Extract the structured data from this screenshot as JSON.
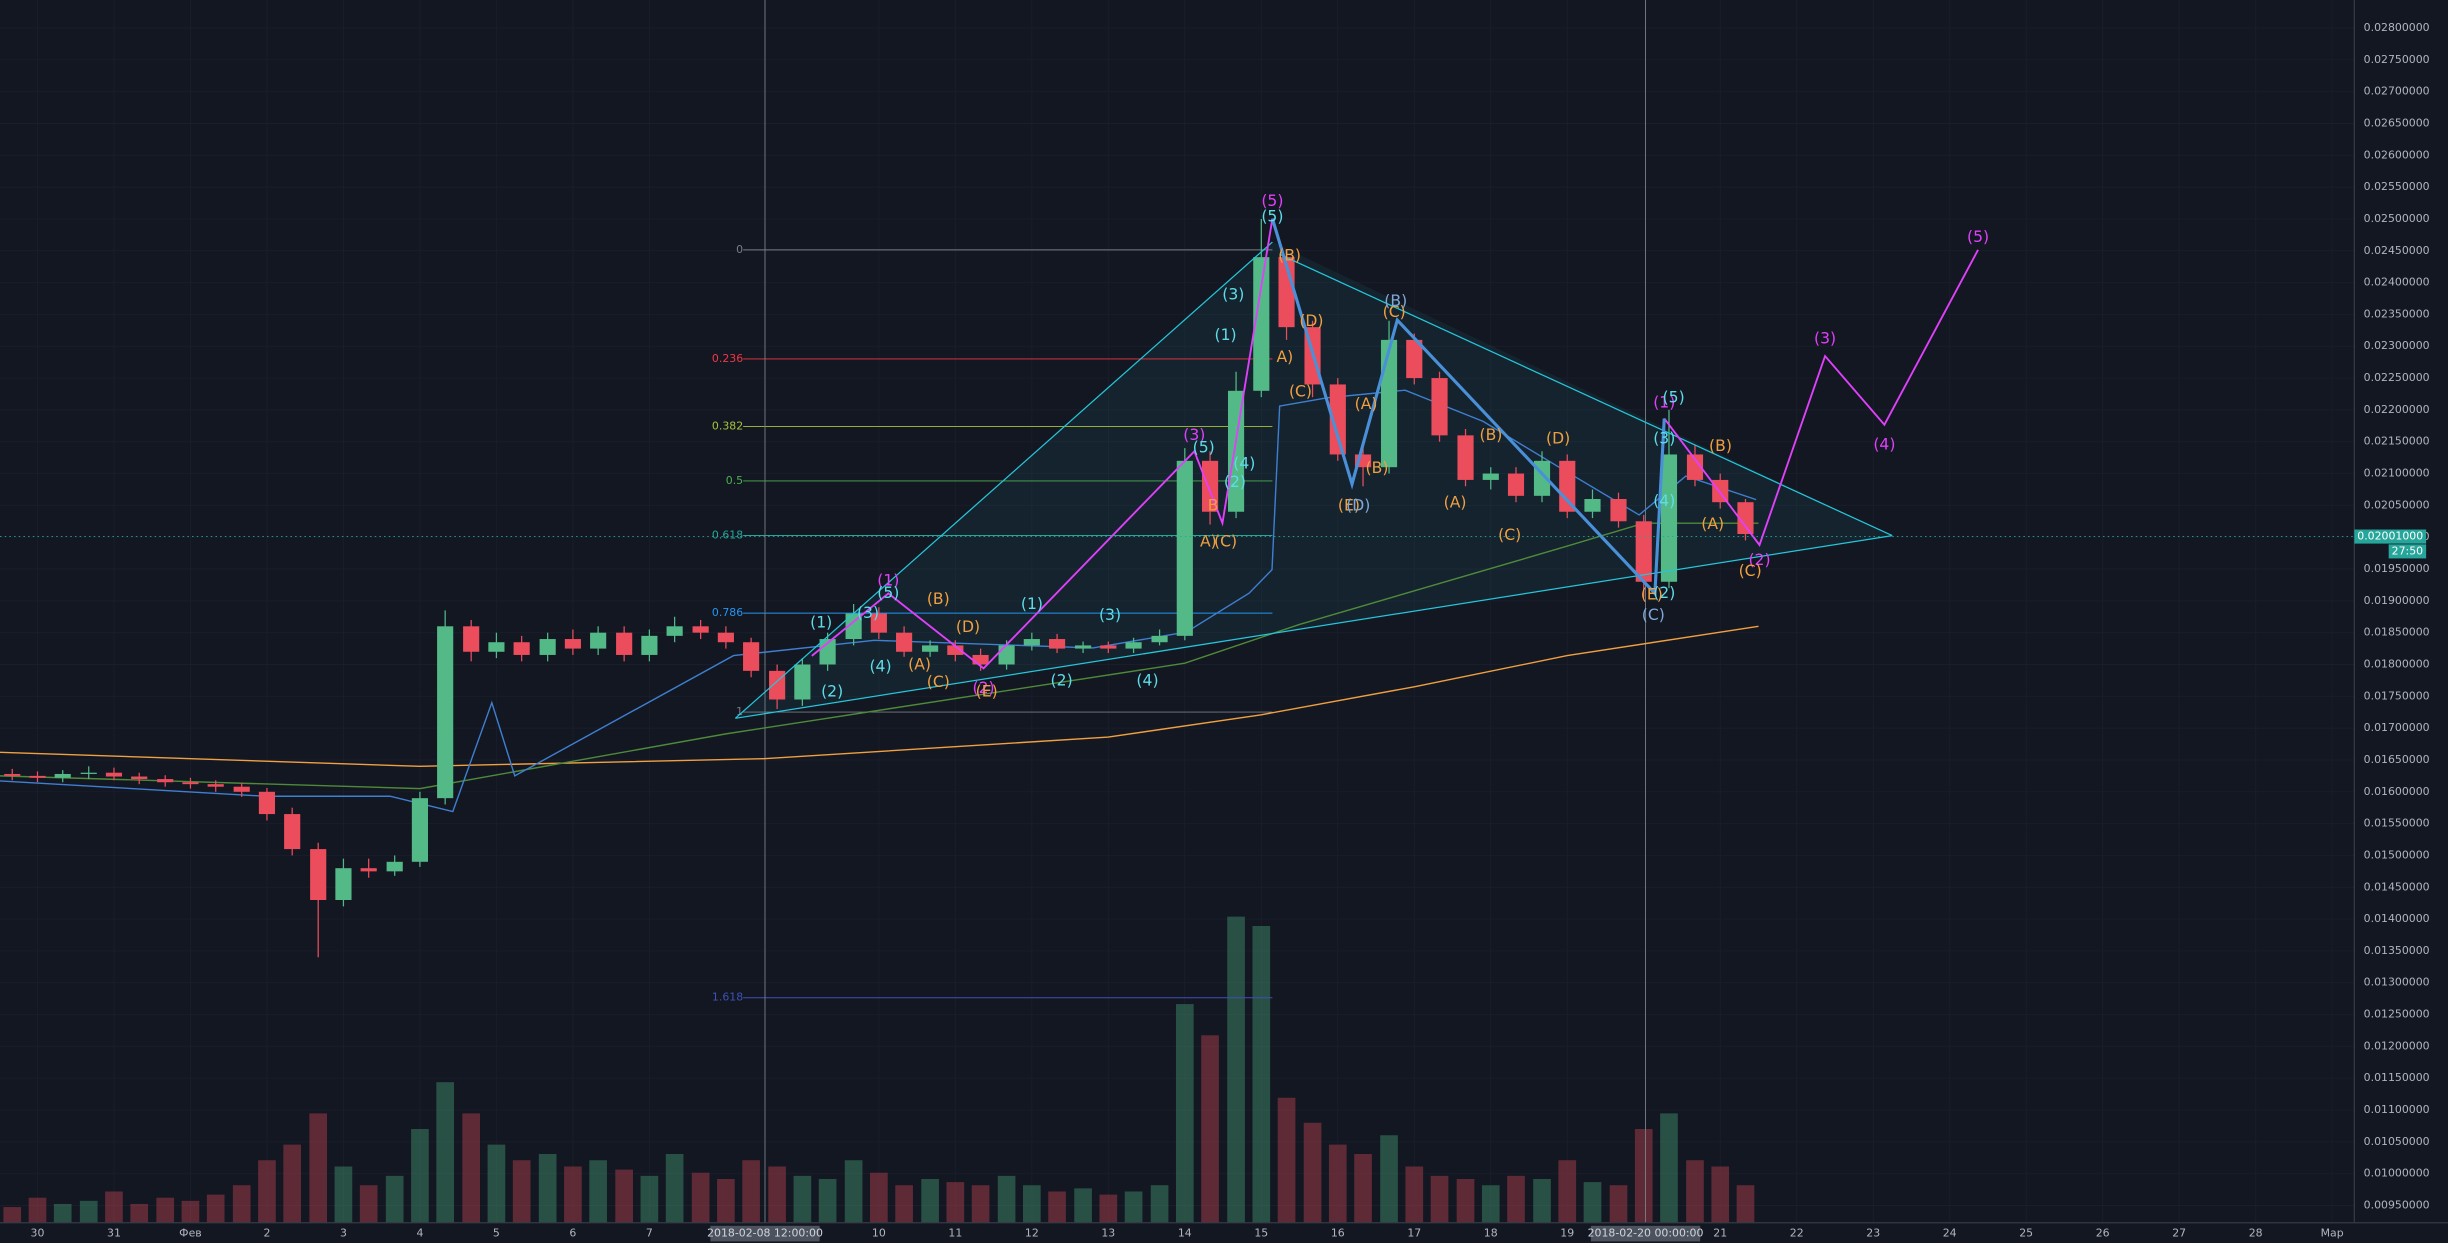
{
  "chart_data": {
    "type": "candlestick",
    "x": [
      -1.33,
      -1,
      -0.67,
      -0.33,
      0,
      0.33,
      0.67,
      1,
      1.33,
      1.67,
      2,
      2.33,
      2.67,
      3,
      3.33,
      3.67,
      4,
      4.33,
      4.67,
      5,
      5.33,
      5.67,
      6,
      6.33,
      6.67,
      7,
      7.33,
      7.67,
      8,
      8.33,
      8.67,
      9,
      9.33,
      9.67,
      10,
      10.33,
      10.67,
      11,
      11.33,
      11.67,
      12,
      12.33,
      12.67,
      13,
      13.33,
      13.67,
      14,
      14.33,
      14.67,
      15,
      15.33,
      15.67,
      16,
      16.33,
      16.67,
      17,
      17.33,
      17.67,
      18,
      18.33,
      18.67,
      19,
      19.33,
      19.67,
      20,
      20.33,
      20.67,
      21,
      21.33
    ],
    "open": [
      0.01628,
      0.01625,
      0.01622,
      0.01628,
      0.0163,
      0.01624,
      0.0162,
      0.01615,
      0.01612,
      0.01608,
      0.016,
      0.01565,
      0.0151,
      0.0143,
      0.0148,
      0.01475,
      0.0149,
      0.0159,
      0.0186,
      0.0182,
      0.01835,
      0.01815,
      0.0184,
      0.01825,
      0.0185,
      0.01815,
      0.01845,
      0.0186,
      0.0185,
      0.01835,
      0.0179,
      0.01745,
      0.018,
      0.0184,
      0.0188,
      0.0185,
      0.0182,
      0.0183,
      0.01815,
      0.018,
      0.0183,
      0.0184,
      0.01825,
      0.0183,
      0.01825,
      0.01835,
      0.01845,
      0.0212,
      0.0204,
      0.0223,
      0.0244,
      0.0233,
      0.0224,
      0.0213,
      0.0211,
      0.0231,
      0.0225,
      0.0216,
      0.0209,
      0.021,
      0.02065,
      0.0212,
      0.0204,
      0.0206,
      0.02025,
      0.0193,
      0.0213,
      0.0209,
      0.02055
    ],
    "high": [
      0.01636,
      0.01632,
      0.01634,
      0.0164,
      0.01638,
      0.0163,
      0.01626,
      0.01622,
      0.01618,
      0.01614,
      0.01606,
      0.01575,
      0.0152,
      0.01495,
      0.01495,
      0.015,
      0.016,
      0.01885,
      0.0187,
      0.0185,
      0.01845,
      0.0185,
      0.01855,
      0.0186,
      0.0186,
      0.01855,
      0.01875,
      0.0187,
      0.0186,
      0.01842,
      0.018,
      0.0181,
      0.0185,
      0.01895,
      0.0189,
      0.0186,
      0.01838,
      0.01838,
      0.01825,
      0.01838,
      0.0185,
      0.01848,
      0.01836,
      0.01836,
      0.01842,
      0.01855,
      0.0214,
      0.02135,
      0.0226,
      0.025,
      0.0245,
      0.0234,
      0.0225,
      0.0215,
      0.0234,
      0.0232,
      0.0226,
      0.0217,
      0.0211,
      0.0211,
      0.02135,
      0.0213,
      0.02075,
      0.0207,
      0.02035,
      0.022,
      0.02145,
      0.021,
      0.0206
    ],
    "low": [
      0.01618,
      0.01615,
      0.01615,
      0.0162,
      0.01618,
      0.01612,
      0.01608,
      0.01605,
      0.016,
      0.01592,
      0.01555,
      0.015,
      0.0134,
      0.0142,
      0.01465,
      0.01468,
      0.01482,
      0.0158,
      0.01805,
      0.0181,
      0.01805,
      0.01805,
      0.01815,
      0.01815,
      0.01805,
      0.01805,
      0.01835,
      0.0184,
      0.01825,
      0.0178,
      0.0173,
      0.01735,
      0.0179,
      0.0183,
      0.0184,
      0.01812,
      0.01812,
      0.01805,
      0.0179,
      0.01792,
      0.01822,
      0.01818,
      0.01818,
      0.01818,
      0.01818,
      0.0183,
      0.01838,
      0.0202,
      0.0203,
      0.0222,
      0.0231,
      0.0222,
      0.0212,
      0.0208,
      0.021,
      0.0224,
      0.0215,
      0.0208,
      0.02075,
      0.02055,
      0.02055,
      0.0203,
      0.0203,
      0.02015,
      0.01905,
      0.0192,
      0.0208,
      0.02045,
      0.01995
    ],
    "close": [
      0.01625,
      0.01622,
      0.01628,
      0.0163,
      0.01624,
      0.0162,
      0.01615,
      0.01612,
      0.01608,
      0.016,
      0.01565,
      0.0151,
      0.0143,
      0.0148,
      0.01475,
      0.0149,
      0.0159,
      0.0186,
      0.0182,
      0.01835,
      0.01815,
      0.0184,
      0.01825,
      0.0185,
      0.01815,
      0.01845,
      0.0186,
      0.0185,
      0.01835,
      0.0179,
      0.01745,
      0.018,
      0.0184,
      0.0188,
      0.0185,
      0.0182,
      0.0183,
      0.01815,
      0.018,
      0.0183,
      0.0184,
      0.01825,
      0.0183,
      0.01825,
      0.01835,
      0.01845,
      0.0212,
      0.0204,
      0.0223,
      0.0244,
      0.0233,
      0.0224,
      0.0213,
      0.0211,
      0.0231,
      0.0225,
      0.0216,
      0.0209,
      0.021,
      0.02065,
      0.0212,
      0.0204,
      0.0206,
      0.02025,
      0.0193,
      0.0213,
      0.0209,
      0.02055,
      0.02005
    ],
    "volume": [
      5,
      8,
      6,
      7,
      10,
      6,
      8,
      7,
      9,
      12,
      20,
      25,
      35,
      18,
      12,
      15,
      30,
      45,
      35,
      25,
      20,
      22,
      18,
      20,
      17,
      15,
      22,
      16,
      14,
      20,
      18,
      15,
      14,
      20,
      16,
      12,
      14,
      13,
      12,
      15,
      12,
      10,
      11,
      9,
      10,
      12,
      70,
      60,
      98,
      95,
      40,
      32,
      25,
      22,
      28,
      18,
      15,
      14,
      12,
      15,
      14,
      20,
      13,
      12,
      30,
      35,
      20,
      18,
      12
    ],
    "volume_lim": [
      0,
      100
    ],
    "up_color": "#53b987",
    "down_color": "#eb4d5c",
    "xlim": [
      -1.49,
      29.29
    ],
    "xticks": [
      {
        "value": -1,
        "label": "30"
      },
      {
        "value": 0,
        "label": "31"
      },
      {
        "value": 1,
        "label": "Фев"
      },
      2,
      3,
      4,
      5,
      6,
      7,
      10,
      11,
      12,
      13,
      14,
      15,
      16,
      17,
      18,
      19,
      21,
      22,
      23,
      24,
      25,
      26,
      27,
      28,
      {
        "value": 29,
        "label": "Мар"
      }
    ],
    "ylim": [
      0.00923,
      0.02844
    ],
    "yticks": [
      {
        "value": 0.0095,
        "label": "0.00950000"
      },
      {
        "value": 0.01,
        "label": "0.01000000"
      },
      {
        "value": 0.0105,
        "label": "0.01050000"
      },
      {
        "value": 0.011,
        "label": "0.01100000"
      },
      {
        "value": 0.0115,
        "label": "0.01150000"
      },
      {
        "value": 0.012,
        "label": "0.01200000"
      },
      {
        "value": 0.0125,
        "label": "0.01250000"
      },
      {
        "value": 0.013,
        "label": "0.01300000"
      },
      {
        "value": 0.0135,
        "label": "0.01350000"
      },
      {
        "value": 0.014,
        "label": "0.01400000"
      },
      {
        "value": 0.0145,
        "label": "0.01450000"
      },
      {
        "value": 0.015,
        "label": "0.01500000"
      },
      {
        "value": 0.0155,
        "label": "0.01550000"
      },
      {
        "value": 0.016,
        "label": "0.01600000"
      },
      {
        "value": 0.0165,
        "label": "0.01650000"
      },
      {
        "value": 0.017,
        "label": "0.01700000"
      },
      {
        "value": 0.0175,
        "label": "0.01750000"
      },
      {
        "value": 0.018,
        "label": "0.01800000"
      },
      {
        "value": 0.0185,
        "label": "0.01850000"
      },
      {
        "value": 0.019,
        "label": "0.01900000"
      },
      {
        "value": 0.0195,
        "label": "0.01950000"
      },
      {
        "value": 0.02,
        "label": "0.02000000"
      },
      {
        "value": 0.0205,
        "label": "0.02050000"
      },
      {
        "value": 0.021,
        "label": "0.02100000"
      },
      {
        "value": 0.0215,
        "label": "0.02150000"
      },
      {
        "value": 0.022,
        "label": "0.02200000"
      },
      {
        "value": 0.0225,
        "label": "0.02250000"
      },
      {
        "value": 0.023,
        "label": "0.02300000"
      },
      {
        "value": 0.0235,
        "label": "0.02350000"
      },
      {
        "value": 0.024,
        "label": "0.02400000"
      },
      {
        "value": 0.0245,
        "label": "0.02450000"
      },
      {
        "value": 0.025,
        "label": "0.02500000"
      },
      {
        "value": 0.0255,
        "label": "0.02550000"
      },
      {
        "value": 0.026,
        "label": "0.02600000"
      },
      {
        "value": 0.0265,
        "label": "0.02650000"
      },
      {
        "value": 0.027,
        "label": "0.02700000"
      },
      {
        "value": 0.0275,
        "label": "0.02750000"
      },
      {
        "value": 0.028,
        "label": "0.02800000"
      }
    ],
    "grid": true,
    "overlays": [
      {
        "color": "#f0a040",
        "x": [
          -1.49,
          4,
          8.5,
          13,
          15,
          17,
          19,
          21.5
        ],
        "values": [
          0.01662,
          0.0164,
          0.01652,
          0.01686,
          0.01721,
          0.01765,
          0.01814,
          0.0186
        ]
      },
      {
        "color": "#4e8a3a",
        "x": [
          -1.49,
          4,
          8,
          14,
          15.5,
          19,
          20,
          21.5
        ],
        "values": [
          0.01625,
          0.01605,
          0.01691,
          0.01802,
          0.01863,
          0.01986,
          0.02022,
          0.02022
        ]
      },
      {
        "color": "#3f7fd0",
        "x": [
          -1.49,
          1.98,
          3.61,
          4.43,
          4.94,
          5.24,
          8.1,
          9.94,
          12.8,
          14.02,
          14.84,
          15.14,
          15.24,
          15.86,
          16.88,
          17.9,
          18.92,
          19.94,
          20.55,
          21.47
        ],
        "values": [
          0.01617,
          0.01593,
          0.01593,
          0.01569,
          0.0174,
          0.01625,
          0.01814,
          0.01838,
          0.01826,
          0.01851,
          0.01912,
          0.01949,
          0.02206,
          0.02219,
          0.02231,
          0.02182,
          0.02108,
          0.02035,
          0.02096,
          0.02059
        ]
      }
    ],
    "last_price": {
      "value": 0.02001,
      "label": "0.02001000"
    },
    "countdown": "27:50",
    "crosshair_labels": [
      "2018-02-08 12:00:00",
      "2018-02-20 00:00:00"
    ],
    "fib_levels": [
      0,
      0.236,
      0.382,
      0.5,
      0.618,
      0.786,
      1,
      1.618
    ],
    "annotations": [
      "(1)",
      "(2)",
      "(3)",
      "(5)",
      "(3)",
      "(4)",
      "(5)",
      "(1)",
      "(2)",
      "(1)",
      "(2)",
      "(3)",
      "(4)",
      "(5)",
      "(1)",
      "(2)",
      "(3)",
      "(4)",
      "(5)",
      "(2)",
      "(4)",
      "(1)",
      "(3)",
      "(5)",
      "(3)",
      "(5)",
      "(4)",
      "(2)",
      "(A)",
      "(B)",
      "(C)",
      "(D)",
      "(E)",
      "A)",
      "B",
      "(C)",
      "A)",
      "(B)",
      "(C)",
      "(D)",
      "(A)",
      "(B)",
      "(C)",
      "(E)",
      "(A)",
      "(B)",
      "(C)",
      "(D)",
      "(A)",
      "(B)",
      "(C)",
      "(E)",
      "(B)",
      "(C)",
      "(D)"
    ]
  }
}
